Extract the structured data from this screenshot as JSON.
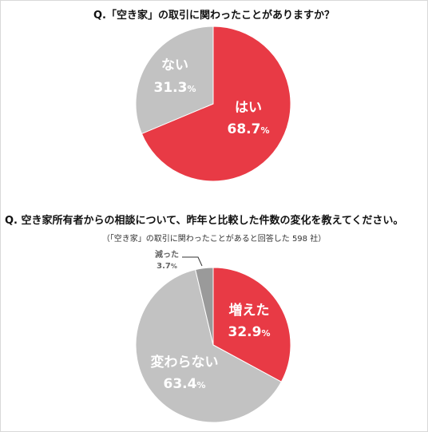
{
  "colors": {
    "accent": "#e83a45",
    "gray": "#c2c2c2",
    "dark_gray": "#9a9a9a",
    "outline": "#ffffff"
  },
  "chart_data": [
    {
      "type": "pie",
      "title": "Q.「空き家」の取引に関わったことがありますか？",
      "slices": [
        {
          "label": "はい",
          "value": "68.7",
          "unit": "%",
          "color": "#e83a45"
        },
        {
          "label": "ない",
          "value": "31.3",
          "unit": "%",
          "color": "#c2c2c2"
        }
      ]
    },
    {
      "type": "pie",
      "title": "Q.  空き家所有者からの相談について、昨年と比較した件数の変化を教えてください。",
      "subtitle": "（「空き家」の取引に関わったことがあると回答した 598 社）",
      "slices": [
        {
          "label": "増えた",
          "value": "32.9",
          "unit": "%",
          "color": "#e83a45"
        },
        {
          "label": "変わらない",
          "value": "63.4",
          "unit": "%",
          "color": "#c2c2c2"
        },
        {
          "label": "減った",
          "value": "3.7",
          "unit": "%",
          "color": "#9a9a9a"
        }
      ]
    }
  ]
}
